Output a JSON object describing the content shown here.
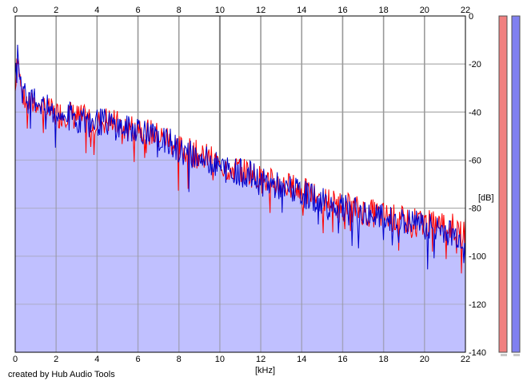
{
  "chart_data": {
    "type": "area",
    "xlabel": "[kHz]",
    "ylabel": "[dB]",
    "xlim": [
      0,
      22
    ],
    "ylim": [
      -140,
      0
    ],
    "x_ticks": [
      "0",
      "2",
      "4",
      "6",
      "8",
      "10",
      "12",
      "14",
      "16",
      "18",
      "20",
      "22"
    ],
    "y_ticks": [
      "0",
      "-20",
      "-40",
      "-60",
      "-80",
      "-100",
      "-120",
      "-140"
    ],
    "grid": true,
    "fill_color": "#c0c0ff",
    "series": [
      {
        "color": "#ff0000",
        "x": [
          0,
          0.1,
          0.2,
          0.3,
          0.5,
          0.8,
          1.0,
          1.5,
          2.0,
          2.5,
          3.0,
          3.5,
          4.0,
          4.5,
          5.0,
          5.5,
          6.0,
          6.5,
          7.0,
          7.5,
          8.0,
          8.5,
          9.0,
          9.5,
          10.0,
          10.5,
          11.0,
          11.5,
          12.0,
          12.5,
          13.0,
          13.5,
          14.0,
          14.5,
          15.0,
          15.5,
          16.0,
          16.5,
          17.0,
          17.5,
          18.0,
          18.5,
          19.0,
          19.5,
          20.0,
          20.5,
          21.0,
          21.5,
          22.0
        ],
        "values": [
          -30,
          -12,
          -22,
          -30,
          -34,
          -36,
          -34,
          -38,
          -40,
          -39,
          -41,
          -42,
          -43,
          -42,
          -44,
          -46,
          -44,
          -47,
          -49,
          -50,
          -54,
          -55,
          -57,
          -58,
          -61,
          -62,
          -63,
          -64,
          -67,
          -68,
          -69,
          -70,
          -72,
          -73,
          -75,
          -76,
          -78,
          -79,
          -80,
          -81,
          -82,
          -83,
          -84,
          -84,
          -85,
          -86,
          -86,
          -87,
          -88
        ]
      },
      {
        "color": "#0000cc",
        "x": [
          0,
          0.1,
          0.2,
          0.3,
          0.5,
          0.8,
          1.0,
          1.5,
          2.0,
          2.5,
          3.0,
          3.5,
          4.0,
          4.5,
          5.0,
          5.5,
          6.0,
          6.5,
          7.0,
          7.5,
          8.0,
          8.5,
          9.0,
          9.5,
          10.0,
          10.5,
          11.0,
          11.5,
          12.0,
          12.5,
          13.0,
          13.5,
          14.0,
          14.5,
          15.0,
          15.5,
          16.0,
          16.5,
          17.0,
          17.5,
          18.0,
          18.5,
          19.0,
          19.5,
          20.0,
          20.5,
          21.0,
          21.5,
          22.0
        ],
        "values": [
          -25,
          -8,
          -20,
          -28,
          -33,
          -35,
          -33,
          -37,
          -40,
          -40,
          -41,
          -43,
          -43,
          -43,
          -45,
          -46,
          -45,
          -48,
          -50,
          -51,
          -55,
          -56,
          -58,
          -59,
          -62,
          -63,
          -64,
          -65,
          -68,
          -69,
          -70,
          -71,
          -73,
          -74,
          -76,
          -77,
          -79,
          -80,
          -81,
          -82,
          -83,
          -84,
          -85,
          -85,
          -86,
          -87,
          -88,
          -90,
          -92
        ]
      }
    ]
  },
  "meters": {
    "left_color": "#f08080",
    "right_color": "#8080f0"
  },
  "credit": "created by Hub Audio Tools"
}
